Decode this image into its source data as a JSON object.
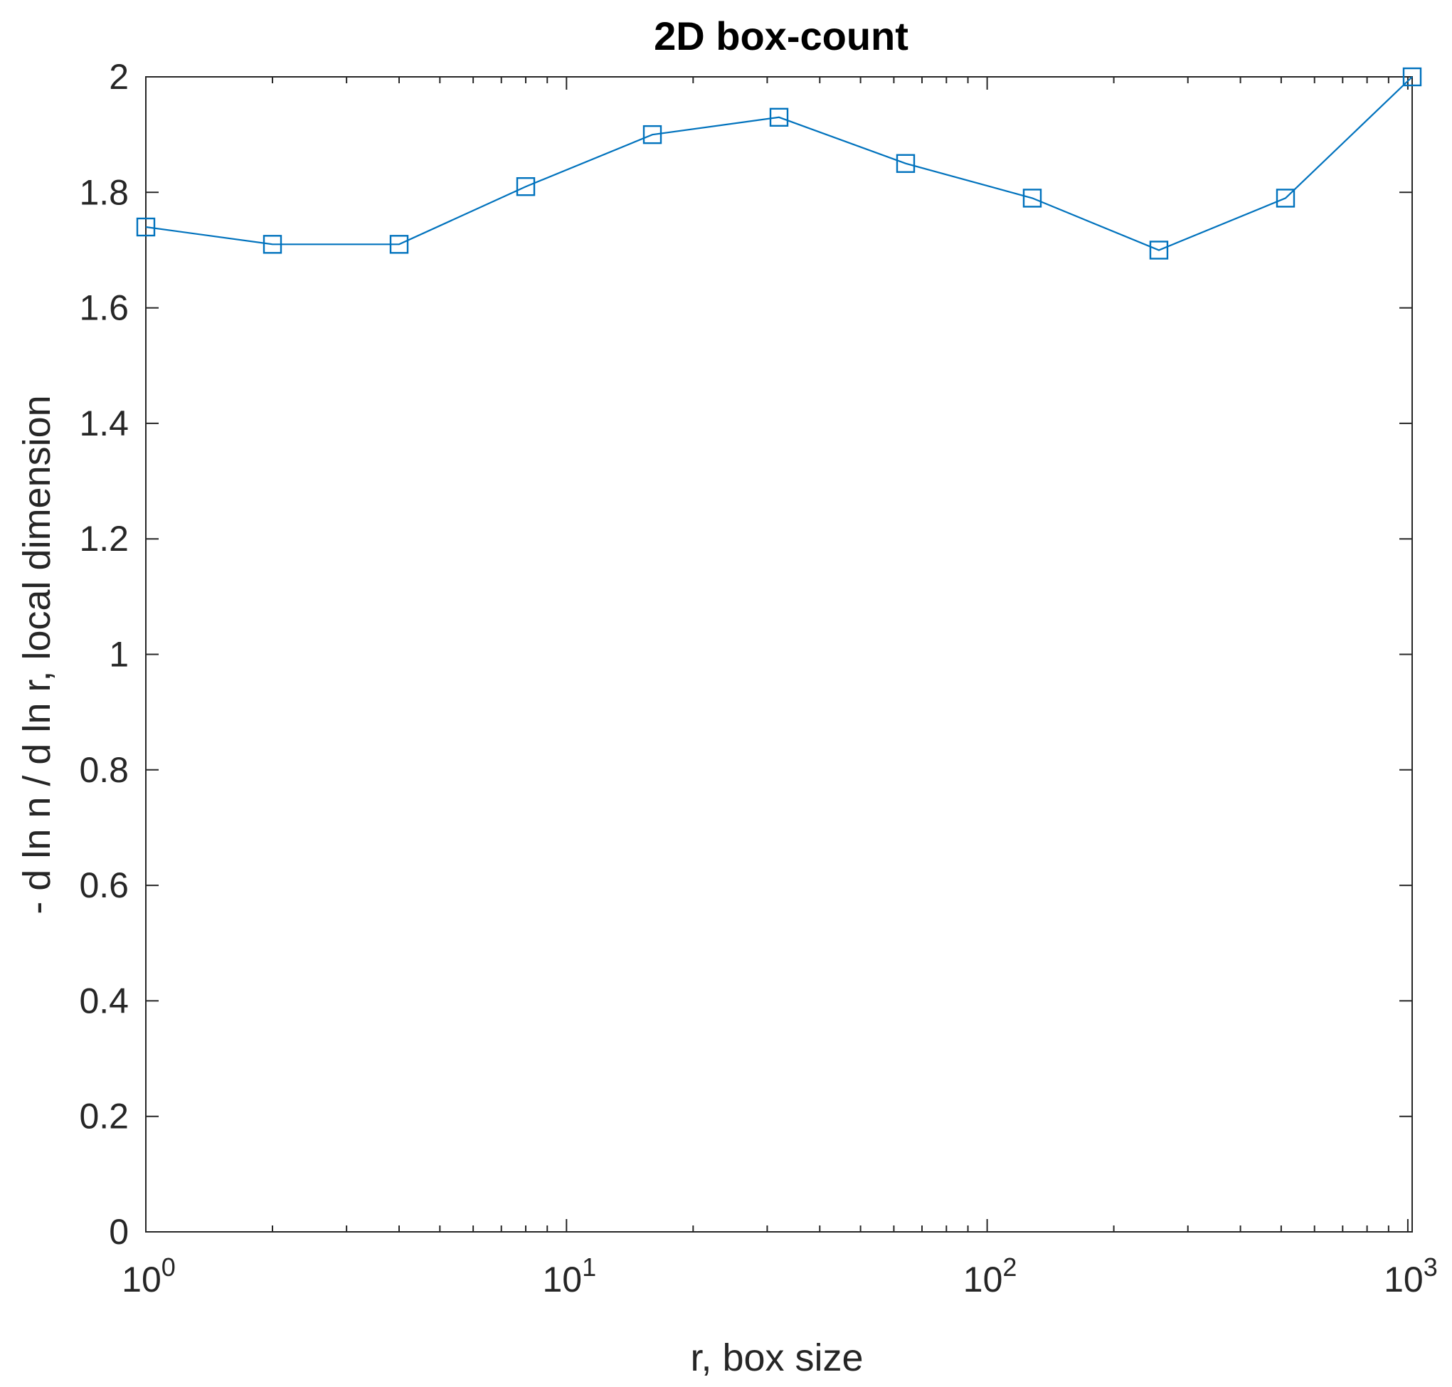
{
  "chart_data": {
    "type": "line",
    "title": "2D box-count",
    "xlabel": "r, box size",
    "ylabel": "- d ln n / d ln r, local dimension",
    "x_scale": "log",
    "xlim": [
      1,
      1024
    ],
    "ylim": [
      0,
      2
    ],
    "grid": false,
    "legend": "none",
    "marker": "square",
    "line_color": "#0072BD",
    "x_ticks": [
      {
        "value": 1,
        "base": "10",
        "exp": "0"
      },
      {
        "value": 10,
        "base": "10",
        "exp": "1"
      },
      {
        "value": 100,
        "base": "10",
        "exp": "2"
      },
      {
        "value": 1000,
        "base": "10",
        "exp": "3"
      }
    ],
    "y_ticks": [
      {
        "value": 0,
        "label": "0"
      },
      {
        "value": 0.2,
        "label": "0.2"
      },
      {
        "value": 0.4,
        "label": "0.4"
      },
      {
        "value": 0.6,
        "label": "0.6"
      },
      {
        "value": 0.8,
        "label": "0.8"
      },
      {
        "value": 1,
        "label": "1"
      },
      {
        "value": 1.2,
        "label": "1.2"
      },
      {
        "value": 1.4,
        "label": "1.4"
      },
      {
        "value": 1.6,
        "label": "1.6"
      },
      {
        "value": 1.8,
        "label": "1.8"
      },
      {
        "value": 2,
        "label": "2"
      }
    ],
    "x": [
      1,
      2,
      4,
      8,
      16,
      32,
      64,
      128,
      256,
      512,
      1024
    ],
    "y": [
      1.74,
      1.71,
      1.71,
      1.81,
      1.9,
      1.93,
      1.85,
      1.79,
      1.7,
      1.79,
      2.0
    ]
  }
}
